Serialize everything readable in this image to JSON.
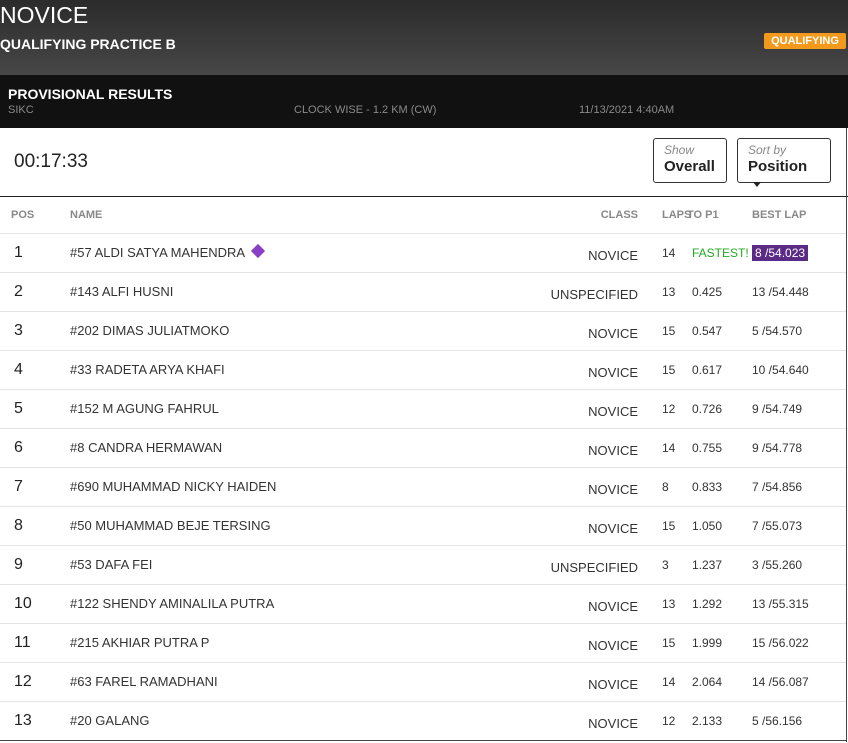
{
  "header": {
    "event": "NOVICE",
    "session": "QUALIFYING PRACTICE B",
    "badge": "QUALIFYING"
  },
  "info": {
    "title": "PROVISIONAL RESULTS",
    "track": "SIKC",
    "layout": "CLOCK WISE - 1.2 KM (CW)",
    "date": "11/13/2021 4:40AM"
  },
  "timer": "00:17:33",
  "controls": {
    "show_label": "Show",
    "show_value": "Overall",
    "sort_label": "Sort by",
    "sort_value": "Position"
  },
  "table": {
    "columns": [
      "POS",
      "NAME",
      "CLASS",
      "LAPS",
      "TO P1",
      "BEST LAP"
    ],
    "rows": [
      [
        "1",
        "#57 ALDI SATYA MAHENDRA",
        "NOVICE",
        "14",
        "FASTEST!",
        "8 /54.023"
      ],
      [
        "2",
        "#143 ALFI HUSNI",
        "UNSPECIFIED",
        "13",
        "0.425",
        "13 /54.448"
      ],
      [
        "3",
        "#202 DIMAS JULIATMOKO",
        "NOVICE",
        "15",
        "0.547",
        "5 /54.570"
      ],
      [
        "4",
        "#33 RADETA ARYA KHAFI",
        "NOVICE",
        "15",
        "0.617",
        "10 /54.640"
      ],
      [
        "5",
        "#152 M AGUNG FAHRUL",
        "NOVICE",
        "12",
        "0.726",
        "9 /54.749"
      ],
      [
        "6",
        "#8 CANDRA HERMAWAN",
        "NOVICE",
        "14",
        "0.755",
        "9 /54.778"
      ],
      [
        "7",
        "#690 MUHAMMAD NICKY HAIDEN",
        "NOVICE",
        "8",
        "0.833",
        "7 /54.856"
      ],
      [
        "8",
        "#50 MUHAMMAD BEJE TERSING",
        "NOVICE",
        "15",
        "1.050",
        "7 /55.073"
      ],
      [
        "9",
        "#53 DAFA FEI",
        "UNSPECIFIED",
        "3",
        "1.237",
        "3 /55.260"
      ],
      [
        "10",
        "#122 SHENDY AMINALILA PUTRA",
        "NOVICE",
        "13",
        "1.292",
        "13 /55.315"
      ],
      [
        "11",
        "#215 AKHIAR PUTRA P",
        "NOVICE",
        "15",
        "1.999",
        "15 /56.022"
      ],
      [
        "12",
        "#63 FAREL RAMADHANI",
        "NOVICE",
        "14",
        "2.064",
        "14 /56.087"
      ],
      [
        "13",
        "#20 GALANG",
        "NOVICE",
        "12",
        "2.133",
        "5 /56.156"
      ]
    ]
  }
}
